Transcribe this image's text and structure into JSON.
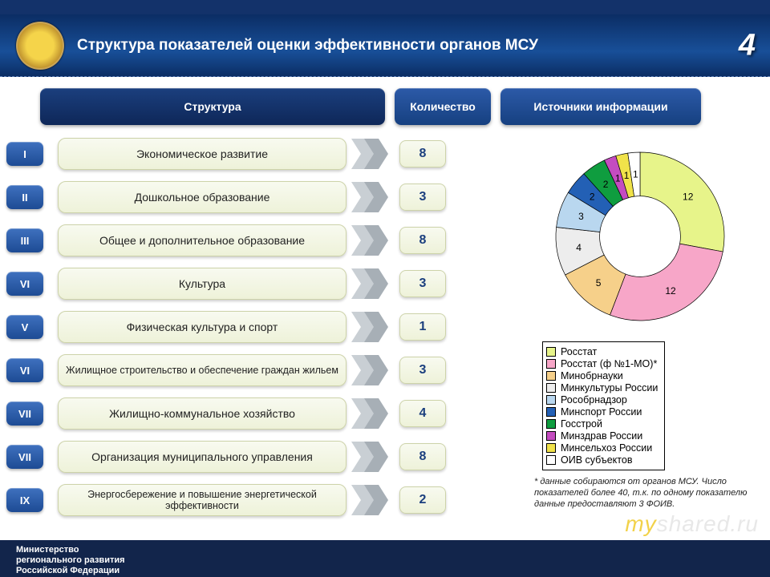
{
  "page_number": "4",
  "header_title": "Структура показателей оценки эффективности органов МСУ",
  "columns": {
    "structure": "Структура",
    "count": "Количество",
    "sources": "Источники информации"
  },
  "rows": [
    {
      "roman": "I",
      "label": "Экономическое развитие",
      "count": "8"
    },
    {
      "roman": "II",
      "label": "Дошкольное образование",
      "count": "3"
    },
    {
      "roman": "III",
      "label": "Общее и дополнительное образование",
      "count": "8"
    },
    {
      "roman": "VI",
      "label": "Культура",
      "count": "3"
    },
    {
      "roman": "V",
      "label": "Физическая культура и спорт",
      "count": "1"
    },
    {
      "roman": "VI",
      "label": "Жилищное строительство и обеспечение граждан жильем",
      "count": "3",
      "tall": true
    },
    {
      "roman": "VII",
      "label": "Жилищно-коммунальное хозяйство",
      "count": "4"
    },
    {
      "roman": "VII",
      "label": "Организация муниципального управления",
      "count": "8"
    },
    {
      "roman": "IX",
      "label": "Энергосбережение и повышение энергетической эффективности",
      "count": "2",
      "tall": true
    }
  ],
  "donut": {
    "type": "pie",
    "inner_ratio": 0.48,
    "size": 250,
    "background_color": "#ffffff",
    "label_fontsize": 12,
    "label_color": "#000000",
    "stroke_color": "#000000",
    "slices": [
      {
        "value": 12,
        "label": "12",
        "color": "#e7f48a"
      },
      {
        "value": 12,
        "label": "12",
        "color": "#f7a6c8"
      },
      {
        "value": 5,
        "label": "5",
        "color": "#f6d08a"
      },
      {
        "value": 4,
        "label": "4",
        "color": "#ededed"
      },
      {
        "value": 3,
        "label": "3",
        "color": "#b9d7ef"
      },
      {
        "value": 2,
        "label": "2",
        "color": "#2360b5"
      },
      {
        "value": 2,
        "label": "2",
        "color": "#0f9d3f"
      },
      {
        "value": 1,
        "label": "1",
        "color": "#c44cc0"
      },
      {
        "value": 1,
        "label": "1",
        "color": "#f0e24a"
      },
      {
        "value": 1,
        "label": "1",
        "color": "#ffffff"
      }
    ]
  },
  "legend": [
    {
      "label": "Росстат",
      "color": "#e7f48a"
    },
    {
      "label": "Росстат (ф №1-МО)*",
      "color": "#f7a6c8"
    },
    {
      "label": "Минобрнауки",
      "color": "#f6d08a"
    },
    {
      "label": "Минкультуры России",
      "color": "#ededed"
    },
    {
      "label": "Рособрнадзор",
      "color": "#b9d7ef"
    },
    {
      "label": "Минспорт России",
      "color": "#2360b5"
    },
    {
      "label": "Госстрой",
      "color": "#0f9d3f"
    },
    {
      "label": "Минздрав России",
      "color": "#c44cc0"
    },
    {
      "label": "Минсельхоз России",
      "color": "#f0e24a"
    },
    {
      "label": "ОИВ субъектов",
      "color": "#ffffff"
    }
  ],
  "footnote": "* данные собираются от органов МСУ. Число показателей более 40, т.к. по одному показателю данные предоставляют 3 ФОИВ.",
  "footer": {
    "line1": "Министерство",
    "line2": "регионального развития",
    "line3": "Российской Федерации"
  },
  "watermark": {
    "pre": "my",
    "post": "shared"
  }
}
